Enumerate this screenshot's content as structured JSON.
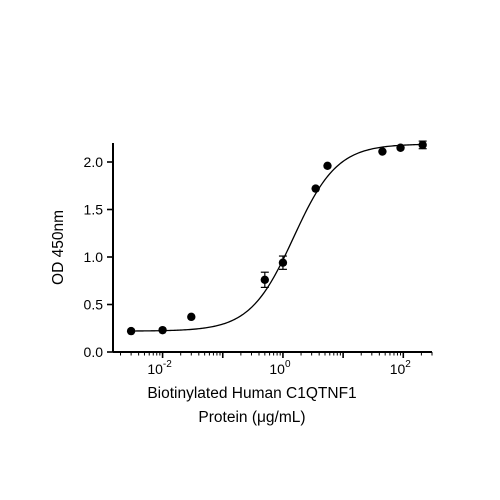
{
  "chart_data": {
    "type": "scatter",
    "title": "",
    "xlabel_lines": [
      "Biotinylated Human C1QTNF1",
      "Protein (μg/mL)"
    ],
    "ylabel": "OD 450nm",
    "x_scale": "log",
    "xlim": [
      0.0015,
      300
    ],
    "ylim": [
      0,
      2.2
    ],
    "x_ticks": [
      {
        "value": 0.01,
        "base": "10",
        "exp": "-2"
      },
      {
        "value": 1,
        "base": "10",
        "exp": "0"
      },
      {
        "value": 100,
        "base": "10",
        "exp": "2"
      }
    ],
    "y_ticks": [
      {
        "value": 0,
        "label": "0.0"
      },
      {
        "value": 0.5,
        "label": "0.5"
      },
      {
        "value": 1.0,
        "label": "1.0"
      },
      {
        "value": 1.5,
        "label": "1.5"
      },
      {
        "value": 2.0,
        "label": "2.0"
      }
    ],
    "grid": false,
    "legend": "none",
    "series": [
      {
        "points": [
          {
            "x": 0.003,
            "y": 0.22,
            "err": 0
          },
          {
            "x": 0.01,
            "y": 0.23,
            "err": 0
          },
          {
            "x": 0.03,
            "y": 0.37,
            "err": 0
          },
          {
            "x": 0.5,
            "y": 0.76,
            "err": 0.08
          },
          {
            "x": 1.0,
            "y": 0.94,
            "err": 0.07
          },
          {
            "x": 3.5,
            "y": 1.72,
            "err": 0
          },
          {
            "x": 5.5,
            "y": 1.96,
            "err": 0
          },
          {
            "x": 45,
            "y": 2.11,
            "err": 0
          },
          {
            "x": 90,
            "y": 2.15,
            "err": 0
          },
          {
            "x": 210,
            "y": 2.18,
            "err": 0.04
          }
        ],
        "fit": {
          "model": "4PL",
          "bottom": 0.22,
          "top": 2.19,
          "ec50": 1.5,
          "hill": 1.2
        }
      }
    ]
  }
}
